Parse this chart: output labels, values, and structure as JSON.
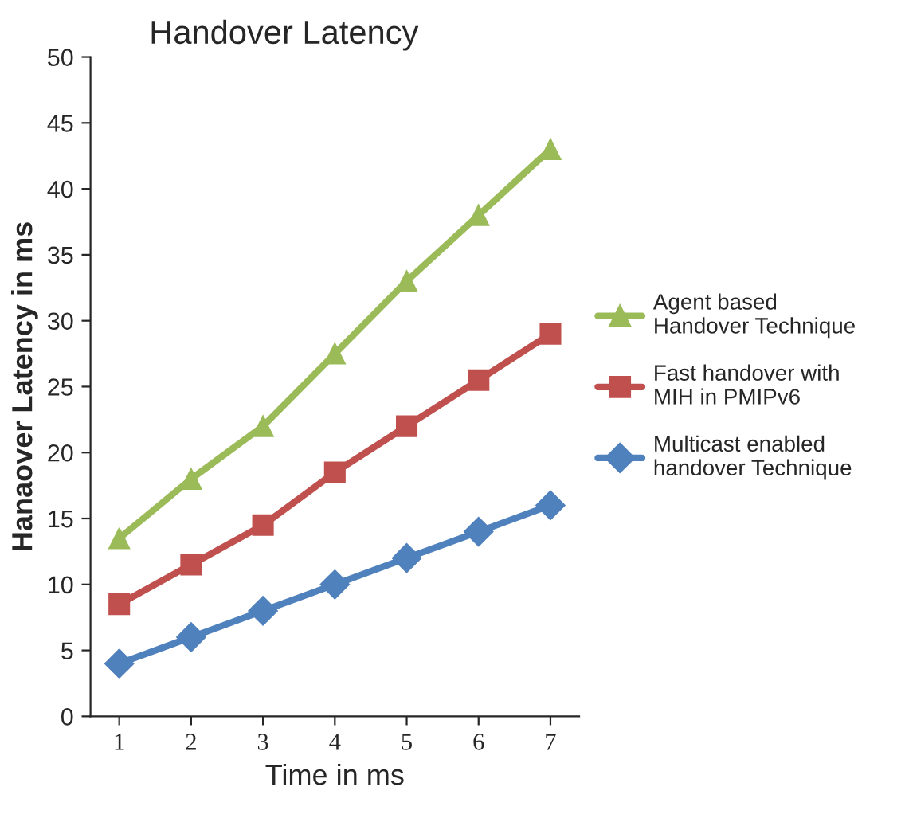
{
  "chart_data": {
    "type": "line",
    "title": "Handover Latency",
    "xlabel": "Time in ms",
    "ylabel": "Hanaover Latency in ms",
    "categories": [
      "1",
      "2",
      "3",
      "4",
      "5",
      "6",
      "7"
    ],
    "ylim": [
      0,
      50
    ],
    "yticks": [
      0,
      5,
      10,
      15,
      20,
      25,
      30,
      35,
      40,
      45,
      50
    ],
    "grid": false,
    "legend": "right",
    "series": [
      {
        "name": "Agent based Handover Technique",
        "color": "#9bbb59",
        "marker": "triangle",
        "values": [
          13.5,
          18,
          22,
          27.5,
          33,
          38,
          43
        ]
      },
      {
        "name": "Fast handover with MIH in PMIPv6",
        "color": "#c0504d",
        "marker": "square",
        "values": [
          8.5,
          11.5,
          14.5,
          18.5,
          22,
          25.5,
          29
        ]
      },
      {
        "name": "Multicast enabled handover Technique",
        "color": "#4f81bd",
        "marker": "diamond",
        "values": [
          4,
          6,
          8,
          10,
          12,
          14,
          16
        ]
      }
    ]
  }
}
